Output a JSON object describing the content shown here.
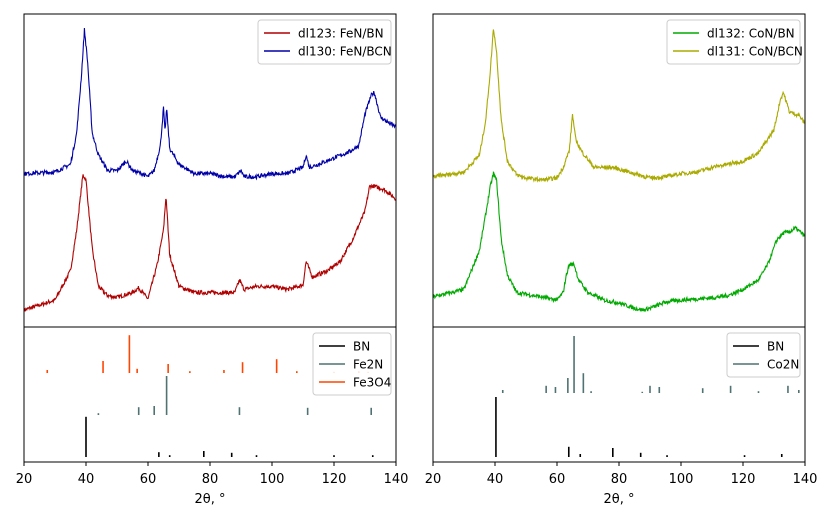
{
  "chart_data": [
    {
      "type": "line",
      "panel": "left-top",
      "xlim": [
        20,
        140
      ],
      "ylim": [
        0,
        100
      ],
      "ylabel": "",
      "legend_position": "top-right",
      "series": [
        {
          "name": "dl123: FeN/BN",
          "color": "#b00000",
          "x": [
            20,
            30,
            35,
            37,
            39,
            40,
            42,
            44,
            47,
            50,
            55,
            57,
            60,
            63,
            65,
            65.8,
            67,
            70,
            75,
            80,
            88,
            89.5,
            91,
            95,
            100,
            105,
            110,
            111,
            113,
            118,
            122,
            126,
            130,
            131.5,
            133,
            136,
            140
          ],
          "y": [
            5.4,
            8.6,
            18,
            31,
            48.6,
            47,
            25,
            13,
            10,
            9.5,
            11,
            12.5,
            9,
            20,
            31,
            42,
            23,
            13,
            11,
            11,
            11,
            15,
            12,
            13,
            13,
            12,
            13.4,
            21,
            16,
            18,
            21,
            28,
            37,
            45,
            45,
            44,
            41
          ]
        },
        {
          "name": "dl130: FeN/BCN",
          "color": "#0000a8",
          "x": [
            20,
            30,
            35,
            37,
            38.5,
            39.5,
            40.5,
            42,
            44,
            47,
            50,
            53,
            55,
            58,
            60,
            62,
            64,
            65,
            65.5,
            66,
            67,
            70,
            75,
            80,
            85,
            88,
            90,
            91,
            95,
            100,
            105,
            110,
            111,
            112,
            115,
            120,
            125,
            128,
            130,
            132,
            133,
            135,
            138,
            140
          ],
          "y": [
            49,
            49.5,
            52,
            62,
            80,
            95,
            85,
            62,
            55,
            50,
            50,
            53,
            50,
            49,
            48,
            50,
            58,
            70,
            62,
            70,
            57,
            52,
            49,
            49,
            48,
            48,
            50,
            48,
            48,
            49,
            49,
            51,
            55,
            51,
            52,
            54,
            56,
            58,
            68,
            74,
            75,
            67,
            65,
            64
          ]
        }
      ]
    },
    {
      "type": "line",
      "panel": "right-top",
      "xlim": [
        20,
        140
      ],
      "ylim": [
        0,
        100
      ],
      "legend_position": "top-right",
      "series": [
        {
          "name": "dl132: CoN/BN",
          "color": "#00aa00",
          "x": [
            20,
            30,
            35,
            37,
            38.5,
            39.5,
            40.5,
            42,
            44,
            47,
            55,
            60,
            62,
            63,
            64,
            65.5,
            67,
            70,
            75,
            80,
            85,
            88,
            92,
            95,
            100,
            105,
            110,
            115,
            120,
            125,
            128,
            131,
            133,
            135,
            137,
            140
          ],
          "y": [
            9.6,
            12,
            24.6,
            36,
            45,
            49,
            47,
            28,
            16.6,
            11,
            9.6,
            8.6,
            11,
            16.6,
            20,
            20,
            15,
            11,
            8.6,
            7.7,
            6,
            5.4,
            6.7,
            8,
            8.6,
            9,
            9.3,
            10,
            12,
            15,
            20,
            28,
            30,
            30.4,
            31.6,
            29
          ]
        },
        {
          "name": "dl131: CoN/BCN",
          "color": "#aaaa00",
          "x": [
            20,
            30,
            35,
            37,
            38.5,
            39.5,
            40.5,
            42,
            44,
            47,
            50,
            55,
            60,
            62,
            64,
            65,
            66,
            68,
            72,
            78,
            85,
            90,
            95,
            100,
            105,
            110,
            115,
            120,
            125,
            130,
            132,
            133,
            135,
            138,
            140
          ],
          "y": [
            48,
            49.5,
            55,
            66,
            82,
            95.5,
            88,
            66,
            53,
            48.6,
            47.6,
            47,
            47.6,
            51,
            56.5,
            68,
            60,
            56,
            51,
            51,
            49,
            47.6,
            48,
            49,
            49.5,
            51,
            52,
            53,
            55.6,
            63,
            72.5,
            75,
            68.7,
            67.7,
            65
          ]
        }
      ]
    },
    {
      "type": "bar",
      "panel": "left-bottom",
      "xlim": [
        20,
        140
      ],
      "xlabel": "2θ, °",
      "xticks": [
        "20",
        "40",
        "60",
        "80",
        "100",
        "120",
        "140"
      ],
      "legend_position": "top-right",
      "series": [
        {
          "name": "BN",
          "color": "#000000",
          "x": [
            40,
            63.5,
            67,
            78,
            87,
            95,
            120,
            132.5
          ],
          "intensity": [
            67,
            8,
            3,
            10,
            7,
            3,
            3,
            3
          ]
        },
        {
          "name": "Fe2N",
          "color": "#4f7272",
          "x": [
            44,
            57,
            62,
            66,
            89.5,
            111.5,
            132
          ],
          "intensity": [
            3,
            13,
            15,
            65,
            13,
            12,
            12
          ]
        },
        {
          "name": "Fe3O4",
          "color": "#ff4500",
          "x": [
            27.5,
            45.5,
            54,
            56.5,
            66.5,
            73.5,
            84.5,
            90.5,
            101.5,
            108,
            120,
            128,
            131
          ],
          "intensity": [
            5,
            20,
            63,
            7,
            15,
            3,
            5,
            18,
            23,
            3,
            2,
            3,
            2
          ]
        }
      ]
    },
    {
      "type": "bar",
      "panel": "right-bottom",
      "xlim": [
        20,
        140
      ],
      "xlabel": "2θ, °",
      "xticks": [
        "20",
        "40",
        "60",
        "80",
        "100",
        "120",
        "140"
      ],
      "legend_position": "top-right",
      "series": [
        {
          "name": "BN",
          "color": "#000000",
          "x": [
            40.3,
            63.8,
            67.5,
            78,
            87,
            95.5,
            120.5,
            132.5
          ],
          "intensity": [
            100,
            17,
            5,
            15,
            7,
            3,
            3,
            5
          ]
        },
        {
          "name": "Co2N",
          "color": "#4f7272",
          "x": [
            42.5,
            56.5,
            59.5,
            63.5,
            65.5,
            68.5,
            71,
            87.5,
            90,
            93,
            107,
            116,
            125,
            134.5,
            138
          ],
          "intensity": [
            5,
            12,
            10,
            25,
            95,
            33,
            3,
            2,
            12,
            10,
            8,
            12,
            3,
            12,
            5
          ]
        }
      ]
    }
  ]
}
